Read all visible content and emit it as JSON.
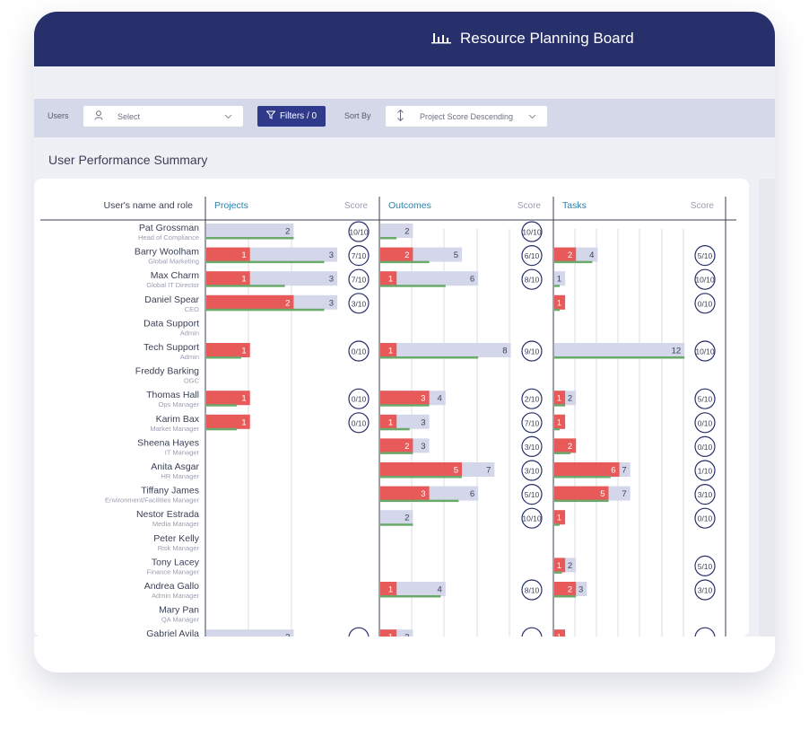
{
  "app": {
    "title": "Resource Planning Board",
    "icon": "bar-chart-icon"
  },
  "toolbar": {
    "users_label": "Users",
    "users_placeholder": "Select",
    "filters_label": "Filters / 0",
    "sort_label": "Sort By",
    "sort_value": "Project Score Descending"
  },
  "section_title": "User Performance Summary",
  "columns": {
    "name_header": "User's name and role",
    "groups": [
      "Projects",
      "Outcomes",
      "Tasks"
    ],
    "score_header": "Score"
  },
  "colors": {
    "navy": "#27306b",
    "red": "#e85a5a",
    "lavender": "#d4d7ea",
    "green": "#6aa96a",
    "blue_text": "#2f7fa6"
  },
  "users": [
    {
      "name": "Pat Grossman",
      "role": "Head of Compliance",
      "projects": {
        "red": 0,
        "total": 2,
        "green": 2,
        "score": "10/10"
      },
      "outcomes": {
        "red": 0,
        "total": 2,
        "green": 1,
        "score": "10/10"
      },
      "tasks": null
    },
    {
      "name": "Barry Woolham",
      "role": "Global Marketing",
      "projects": {
        "red": 1,
        "total": 3,
        "green": 2.7,
        "score": "7/10"
      },
      "outcomes": {
        "red": 2,
        "total": 5,
        "green": 3,
        "score": "6/10"
      },
      "tasks": {
        "red": 2,
        "total": 4,
        "green": 3.5,
        "score": "5/10"
      }
    },
    {
      "name": "Max Charm",
      "role": "Global IT Director",
      "projects": {
        "red": 1,
        "total": 3,
        "green": 1.8,
        "score": "7/10"
      },
      "outcomes": {
        "red": 1,
        "total": 6,
        "green": 4,
        "score": "8/10"
      },
      "tasks": {
        "red": 0,
        "total": 1,
        "green": 0.5,
        "score": "10/10"
      }
    },
    {
      "name": "Daniel Spear",
      "role": "CEO",
      "projects": {
        "red": 2,
        "total": 3,
        "green": 2.7,
        "score": "3/10"
      },
      "outcomes": null,
      "tasks": {
        "red": 1,
        "total": 1,
        "green": 0.5,
        "score": "0/10"
      }
    },
    {
      "name": "Data Support",
      "role": "Admin",
      "projects": null,
      "outcomes": null,
      "tasks": null
    },
    {
      "name": "Tech Support",
      "role": "Admin",
      "projects": {
        "red": 1,
        "total": 1,
        "green": 0.8,
        "score": "0/10"
      },
      "outcomes": {
        "red": 1,
        "total": 8,
        "green": 6,
        "score": "9/10"
      },
      "tasks": {
        "red": 0,
        "total": 12,
        "green": 12,
        "score": "10/10"
      }
    },
    {
      "name": "Freddy Barking",
      "role": "OGC",
      "projects": null,
      "outcomes": null,
      "tasks": null
    },
    {
      "name": "Thomas Hall",
      "role": "Ops Manager",
      "projects": {
        "red": 1,
        "total": 1,
        "green": 0.7,
        "score": "0/10"
      },
      "outcomes": {
        "red": 3,
        "total": 4,
        "green": 3,
        "score": "2/10"
      },
      "tasks": {
        "red": 1,
        "total": 2,
        "green": 1,
        "score": "5/10"
      }
    },
    {
      "name": "Karim Bax",
      "role": "Market Manager",
      "projects": {
        "red": 1,
        "total": 1,
        "green": 0.7,
        "score": "0/10"
      },
      "outcomes": {
        "red": 1,
        "total": 3,
        "green": 1.8,
        "score": "7/10"
      },
      "tasks": {
        "red": 1,
        "total": 1,
        "green": 0.5,
        "score": "0/10"
      }
    },
    {
      "name": "Sheena Hayes",
      "role": "IT Manager",
      "projects": null,
      "outcomes": {
        "red": 2,
        "total": 3,
        "green": 2,
        "score": "3/10"
      },
      "tasks": {
        "red": 2,
        "total": 2,
        "green": 1.5,
        "score": "0/10"
      }
    },
    {
      "name": "Anita Asgar",
      "role": "HR Manager",
      "projects": null,
      "outcomes": {
        "red": 5,
        "total": 7,
        "green": 5,
        "score": "3/10"
      },
      "tasks": {
        "red": 6,
        "total": 7,
        "green": 5.2,
        "score": "1/10"
      }
    },
    {
      "name": "Tiffany James",
      "role": "Environment/Facilities Manager",
      "projects": null,
      "outcomes": {
        "red": 3,
        "total": 6,
        "green": 4.8,
        "score": "5/10"
      },
      "tasks": {
        "red": 5,
        "total": 7,
        "green": 5,
        "score": "3/10"
      }
    },
    {
      "name": "Nestor Estrada",
      "role": "Media Manager",
      "projects": null,
      "outcomes": {
        "red": 0,
        "total": 2,
        "green": 2,
        "score": "10/10"
      },
      "tasks": {
        "red": 1,
        "total": 1,
        "green": 0.5,
        "score": "0/10"
      }
    },
    {
      "name": "Peter Kelly",
      "role": "Risk Manager",
      "projects": null,
      "outcomes": null,
      "tasks": null
    },
    {
      "name": "Tony Lacey",
      "role": "Finance Manager",
      "projects": null,
      "outcomes": null,
      "tasks": {
        "red": 1,
        "total": 2,
        "green": 0.7,
        "score": "5/10"
      }
    },
    {
      "name": "Andrea Gallo",
      "role": "Admin Manager",
      "projects": null,
      "outcomes": {
        "red": 1,
        "total": 4,
        "green": 3.7,
        "score": "8/10"
      },
      "tasks": {
        "red": 2,
        "total": 3,
        "green": 2,
        "score": "3/10"
      }
    },
    {
      "name": "Mary Pan",
      "role": "QA Manager",
      "projects": null,
      "outcomes": null,
      "tasks": null
    },
    {
      "name": "Gabriel Avila",
      "role": "",
      "projects": {
        "red": 0,
        "total": 2,
        "green": 0,
        "score": ""
      },
      "outcomes": {
        "red": 1,
        "total": 2,
        "green": 0,
        "score": ""
      },
      "tasks": {
        "red": 1,
        "total": 1,
        "green": 0,
        "score": ""
      }
    }
  ]
}
